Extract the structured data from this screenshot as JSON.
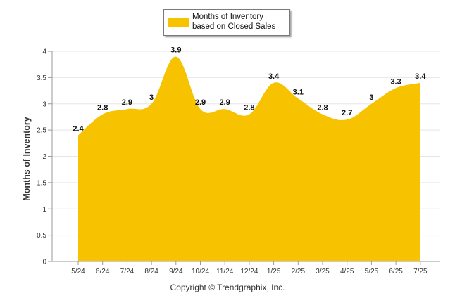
{
  "chart_data": {
    "type": "area",
    "categories": [
      "5/24",
      "6/24",
      "7/24",
      "8/24",
      "9/24",
      "10/24",
      "11/24",
      "12/24",
      "1/25",
      "2/25",
      "3/25",
      "4/25",
      "5/25",
      "6/25",
      "7/25"
    ],
    "series": [
      {
        "name": "Months of Inventory based on Closed Sales",
        "values": [
          2.4,
          2.8,
          2.9,
          3,
          3.9,
          2.9,
          2.9,
          2.8,
          3.4,
          3.1,
          2.8,
          2.7,
          3,
          3.3,
          3.4
        ],
        "color": "#F7C200"
      }
    ],
    "data_labels": [
      "2.4",
      "2.8",
      "2.9",
      "3",
      "3.9",
      "2.9",
      "2.9",
      "2.8",
      "3.4",
      "3.1",
      "2.8",
      "2.7",
      "3",
      "3.3",
      "3.4"
    ],
    "y_ticks": [
      "0",
      "0.5",
      "1",
      "1.5",
      "2",
      "2.5",
      "3",
      "3.5",
      "4"
    ],
    "ylim": [
      0,
      4
    ],
    "ylabel": "Months of Inventory",
    "xlabel": "",
    "title": "",
    "grid": true,
    "legend_position": "top-center"
  },
  "legend": {
    "label": "Months of Inventory based on Closed Sales",
    "color": "#F7C200"
  },
  "footer": {
    "copyright": "Copyright © Trendgraphix, Inc."
  }
}
